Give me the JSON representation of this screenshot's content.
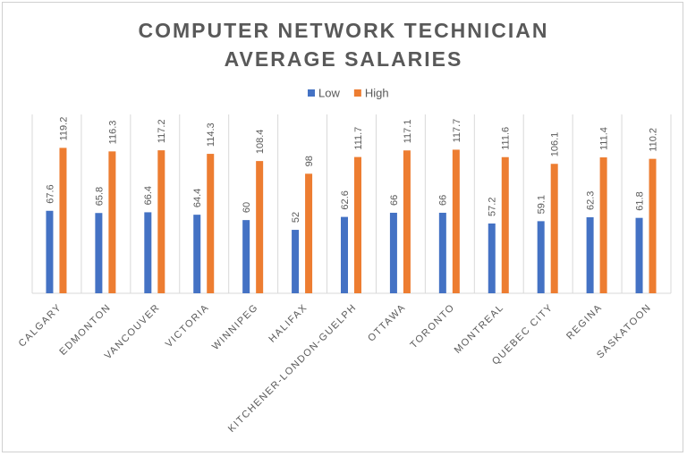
{
  "chart_data": {
    "type": "bar",
    "title": "COMPUTER NETWORK TECHNICIAN AVERAGE SALARIES",
    "categories": [
      "CALGARY",
      "EDMONTON",
      "VANCOUVER",
      "VICTORIA",
      "WINNIPEG",
      "HALIFAX",
      "KITCHENER-LONDON-GUELPH",
      "OTTAWA",
      "TORONTO",
      "MONTREAL",
      "QUEBEC CITY",
      "REGINA",
      "SASKATOON"
    ],
    "series": [
      {
        "name": "Low",
        "color": "#4472c4",
        "values": [
          67.6,
          65.8,
          66.4,
          64.4,
          60,
          52,
          62.6,
          66,
          66,
          57.2,
          59.1,
          62.3,
          61.8
        ]
      },
      {
        "name": "High",
        "color": "#ed7d31",
        "values": [
          119.2,
          116.3,
          117.2,
          114.3,
          108.4,
          98,
          111.7,
          117.1,
          117.7,
          111.6,
          106.1,
          111.4,
          110.2
        ]
      }
    ],
    "ylim": [
      0,
      140
    ],
    "legend": "top"
  }
}
